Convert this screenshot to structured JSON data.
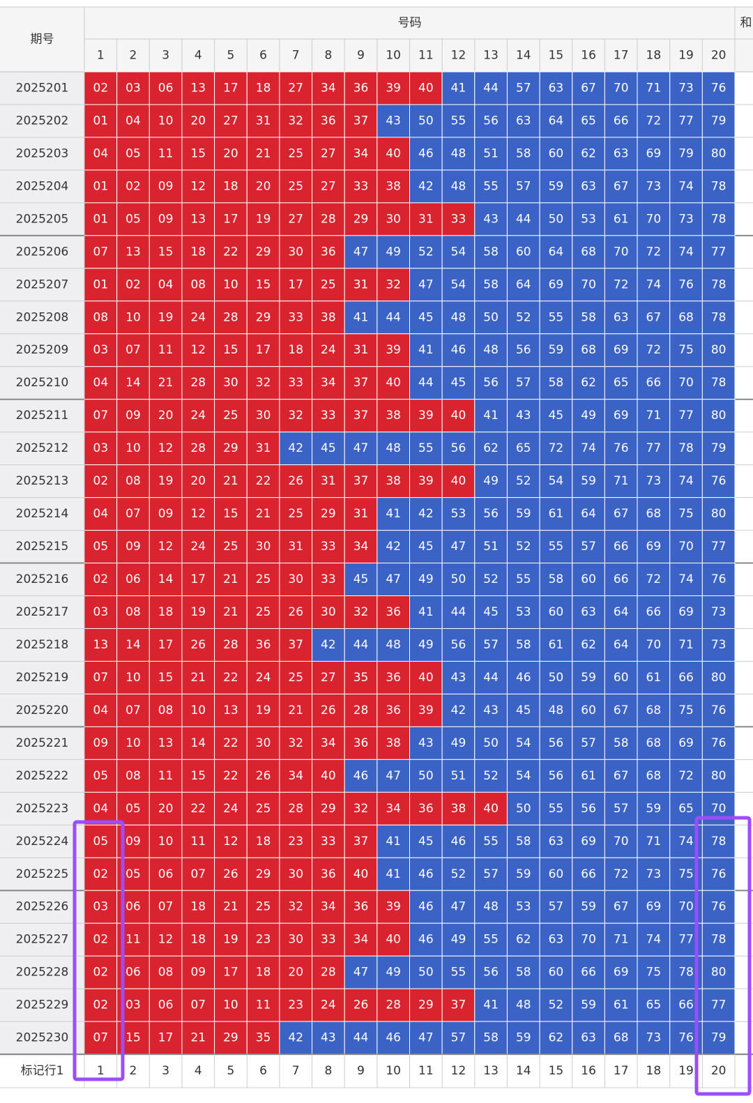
{
  "table": {
    "header": {
      "period": "期号",
      "numbers": "号码",
      "sum": "和"
    },
    "columns": [
      1,
      2,
      3,
      4,
      5,
      6,
      7,
      8,
      9,
      10,
      11,
      12,
      13,
      14,
      15,
      16,
      17,
      18,
      19,
      20
    ],
    "rows": [
      {
        "period": "2025201",
        "numbers": [
          "02",
          "03",
          "06",
          "13",
          "17",
          "18",
          "27",
          "34",
          "36",
          "39",
          "40",
          "41",
          "44",
          "57",
          "63",
          "67",
          "70",
          "71",
          "73",
          "76"
        ]
      },
      {
        "period": "2025202",
        "numbers": [
          "01",
          "04",
          "10",
          "20",
          "27",
          "31",
          "32",
          "36",
          "37",
          "43",
          "50",
          "55",
          "56",
          "63",
          "64",
          "65",
          "66",
          "72",
          "77",
          "79"
        ]
      },
      {
        "period": "2025203",
        "numbers": [
          "04",
          "05",
          "11",
          "15",
          "20",
          "21",
          "25",
          "27",
          "34",
          "40",
          "46",
          "48",
          "51",
          "58",
          "60",
          "62",
          "63",
          "69",
          "79",
          "80"
        ]
      },
      {
        "period": "2025204",
        "numbers": [
          "01",
          "02",
          "09",
          "12",
          "18",
          "20",
          "25",
          "27",
          "33",
          "38",
          "42",
          "48",
          "55",
          "57",
          "59",
          "63",
          "67",
          "73",
          "74",
          "78"
        ]
      },
      {
        "period": "2025205",
        "numbers": [
          "01",
          "05",
          "09",
          "13",
          "17",
          "19",
          "27",
          "28",
          "29",
          "30",
          "31",
          "33",
          "43",
          "44",
          "50",
          "53",
          "61",
          "70",
          "73",
          "78"
        ]
      },
      {
        "period": "2025206",
        "numbers": [
          "07",
          "13",
          "15",
          "18",
          "22",
          "29",
          "30",
          "36",
          "47",
          "49",
          "52",
          "54",
          "58",
          "60",
          "64",
          "68",
          "70",
          "72",
          "74",
          "77"
        ]
      },
      {
        "period": "2025207",
        "numbers": [
          "01",
          "02",
          "04",
          "08",
          "10",
          "15",
          "17",
          "25",
          "31",
          "32",
          "47",
          "54",
          "58",
          "64",
          "69",
          "70",
          "72",
          "74",
          "76",
          "78"
        ]
      },
      {
        "period": "2025208",
        "numbers": [
          "08",
          "10",
          "19",
          "24",
          "28",
          "29",
          "33",
          "38",
          "41",
          "44",
          "45",
          "48",
          "50",
          "52",
          "55",
          "58",
          "63",
          "67",
          "68",
          "78"
        ]
      },
      {
        "period": "2025209",
        "numbers": [
          "03",
          "07",
          "11",
          "12",
          "15",
          "17",
          "18",
          "24",
          "31",
          "39",
          "41",
          "46",
          "48",
          "56",
          "59",
          "68",
          "69",
          "72",
          "75",
          "80"
        ]
      },
      {
        "period": "2025210",
        "numbers": [
          "04",
          "14",
          "21",
          "28",
          "30",
          "32",
          "33",
          "34",
          "37",
          "40",
          "44",
          "45",
          "56",
          "57",
          "58",
          "62",
          "65",
          "66",
          "70",
          "78"
        ]
      },
      {
        "period": "2025211",
        "numbers": [
          "07",
          "09",
          "20",
          "24",
          "25",
          "30",
          "32",
          "33",
          "37",
          "38",
          "39",
          "40",
          "41",
          "43",
          "45",
          "49",
          "69",
          "71",
          "77",
          "80"
        ]
      },
      {
        "period": "2025212",
        "numbers": [
          "03",
          "10",
          "12",
          "28",
          "29",
          "31",
          "42",
          "45",
          "47",
          "48",
          "55",
          "56",
          "62",
          "65",
          "72",
          "74",
          "76",
          "77",
          "78",
          "79"
        ]
      },
      {
        "period": "2025213",
        "numbers": [
          "02",
          "08",
          "19",
          "20",
          "21",
          "22",
          "26",
          "31",
          "37",
          "38",
          "39",
          "40",
          "49",
          "52",
          "54",
          "59",
          "71",
          "73",
          "74",
          "76"
        ]
      },
      {
        "period": "2025214",
        "numbers": [
          "04",
          "07",
          "09",
          "12",
          "15",
          "21",
          "25",
          "29",
          "31",
          "41",
          "42",
          "53",
          "56",
          "59",
          "61",
          "64",
          "67",
          "68",
          "75",
          "80"
        ]
      },
      {
        "period": "2025215",
        "numbers": [
          "05",
          "09",
          "12",
          "24",
          "25",
          "30",
          "31",
          "33",
          "34",
          "42",
          "45",
          "47",
          "51",
          "52",
          "55",
          "57",
          "66",
          "69",
          "70",
          "77"
        ]
      },
      {
        "period": "2025216",
        "numbers": [
          "02",
          "06",
          "14",
          "17",
          "21",
          "25",
          "30",
          "33",
          "45",
          "47",
          "49",
          "50",
          "52",
          "55",
          "58",
          "60",
          "66",
          "72",
          "74",
          "76"
        ]
      },
      {
        "period": "2025217",
        "numbers": [
          "03",
          "08",
          "18",
          "19",
          "21",
          "25",
          "26",
          "30",
          "32",
          "36",
          "41",
          "44",
          "45",
          "53",
          "60",
          "63",
          "64",
          "66",
          "69",
          "73"
        ]
      },
      {
        "period": "2025218",
        "numbers": [
          "13",
          "14",
          "17",
          "26",
          "28",
          "36",
          "37",
          "42",
          "44",
          "48",
          "49",
          "56",
          "57",
          "58",
          "61",
          "62",
          "64",
          "70",
          "71",
          "73"
        ]
      },
      {
        "period": "2025219",
        "numbers": [
          "07",
          "10",
          "15",
          "21",
          "22",
          "24",
          "25",
          "27",
          "35",
          "36",
          "40",
          "43",
          "44",
          "46",
          "50",
          "59",
          "60",
          "61",
          "66",
          "80"
        ]
      },
      {
        "period": "2025220",
        "numbers": [
          "04",
          "07",
          "08",
          "10",
          "13",
          "19",
          "21",
          "26",
          "28",
          "36",
          "39",
          "42",
          "43",
          "45",
          "48",
          "60",
          "67",
          "68",
          "75",
          "76"
        ]
      },
      {
        "period": "2025221",
        "numbers": [
          "09",
          "10",
          "13",
          "14",
          "22",
          "30",
          "32",
          "34",
          "36",
          "38",
          "43",
          "49",
          "50",
          "54",
          "56",
          "57",
          "58",
          "68",
          "69",
          "76"
        ]
      },
      {
        "period": "2025222",
        "numbers": [
          "05",
          "08",
          "11",
          "15",
          "22",
          "26",
          "34",
          "40",
          "46",
          "47",
          "50",
          "51",
          "52",
          "54",
          "56",
          "61",
          "67",
          "68",
          "72",
          "80"
        ]
      },
      {
        "period": "2025223",
        "numbers": [
          "04",
          "05",
          "20",
          "22",
          "24",
          "25",
          "28",
          "29",
          "32",
          "34",
          "36",
          "38",
          "40",
          "50",
          "55",
          "56",
          "57",
          "59",
          "65",
          "70"
        ]
      },
      {
        "period": "2025224",
        "numbers": [
          "05",
          "09",
          "10",
          "11",
          "12",
          "18",
          "23",
          "33",
          "37",
          "41",
          "45",
          "46",
          "55",
          "58",
          "63",
          "69",
          "70",
          "71",
          "74",
          "78"
        ]
      },
      {
        "period": "2025225",
        "numbers": [
          "02",
          "05",
          "06",
          "07",
          "26",
          "29",
          "30",
          "36",
          "40",
          "41",
          "46",
          "52",
          "57",
          "59",
          "60",
          "66",
          "72",
          "73",
          "75",
          "76"
        ]
      },
      {
        "period": "2025226",
        "numbers": [
          "03",
          "06",
          "07",
          "18",
          "21",
          "25",
          "32",
          "34",
          "36",
          "39",
          "46",
          "47",
          "48",
          "53",
          "57",
          "59",
          "67",
          "69",
          "70",
          "76"
        ]
      },
      {
        "period": "2025227",
        "numbers": [
          "02",
          "11",
          "12",
          "18",
          "19",
          "23",
          "30",
          "33",
          "34",
          "40",
          "46",
          "49",
          "55",
          "62",
          "63",
          "70",
          "71",
          "74",
          "77",
          "78"
        ]
      },
      {
        "period": "2025228",
        "numbers": [
          "02",
          "06",
          "08",
          "09",
          "17",
          "18",
          "20",
          "28",
          "47",
          "49",
          "50",
          "55",
          "56",
          "58",
          "60",
          "66",
          "69",
          "75",
          "78",
          "80"
        ]
      },
      {
        "period": "2025229",
        "numbers": [
          "02",
          "03",
          "06",
          "07",
          "10",
          "11",
          "23",
          "24",
          "26",
          "28",
          "29",
          "37",
          "41",
          "48",
          "52",
          "59",
          "61",
          "65",
          "66",
          "77"
        ]
      },
      {
        "period": "2025230",
        "numbers": [
          "07",
          "15",
          "17",
          "21",
          "29",
          "35",
          "42",
          "43",
          "44",
          "46",
          "47",
          "57",
          "58",
          "59",
          "62",
          "63",
          "68",
          "73",
          "76",
          "79"
        ]
      }
    ],
    "marker_row": {
      "label": "标记行1",
      "values": [
        1,
        2,
        3,
        4,
        5,
        6,
        7,
        8,
        9,
        10,
        11,
        12,
        13,
        14,
        15,
        16,
        17,
        18,
        19,
        20
      ]
    },
    "colors": {
      "low": "#d9232e",
      "high": "#3b63c6"
    }
  }
}
